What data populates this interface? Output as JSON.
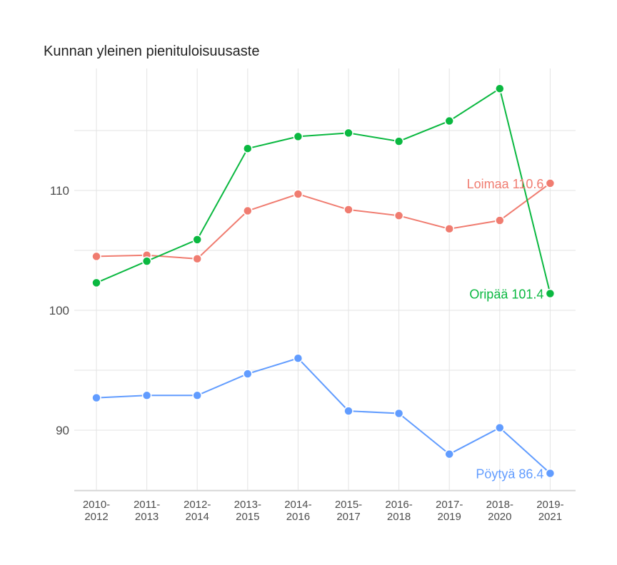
{
  "chart_data": {
    "type": "line",
    "title": "Kunnan yleinen pienituloisuusaste",
    "xlabel": "",
    "ylabel": "",
    "categories": [
      "2010-2012",
      "2011-2013",
      "2012-2014",
      "2013-2015",
      "2014-2016",
      "2015-2017",
      "2016-2018",
      "2017-2019",
      "2018-2020",
      "2019-2021"
    ],
    "y_ticks": [
      90,
      100,
      110
    ],
    "ylim": [
      85,
      120
    ],
    "grid": true,
    "legend": "none",
    "series": [
      {
        "name": "Loimaa",
        "color": "#f07c70",
        "values": [
          104.5,
          104.6,
          104.3,
          108.3,
          109.7,
          108.4,
          107.9,
          106.8,
          107.5,
          110.6
        ],
        "end_label": "Loimaa 110.6"
      },
      {
        "name": "Oripää",
        "color": "#0ab840",
        "values": [
          102.3,
          104.1,
          105.9,
          113.5,
          114.5,
          114.8,
          114.1,
          115.8,
          118.5,
          101.4
        ],
        "end_label": "Oripää 101.4"
      },
      {
        "name": "Pöytyä",
        "color": "#619cff",
        "values": [
          92.7,
          92.9,
          92.9,
          94.7,
          96.0,
          91.6,
          91.4,
          88.0,
          90.2,
          86.4
        ],
        "end_label": "Pöytyä 86.4"
      }
    ]
  }
}
